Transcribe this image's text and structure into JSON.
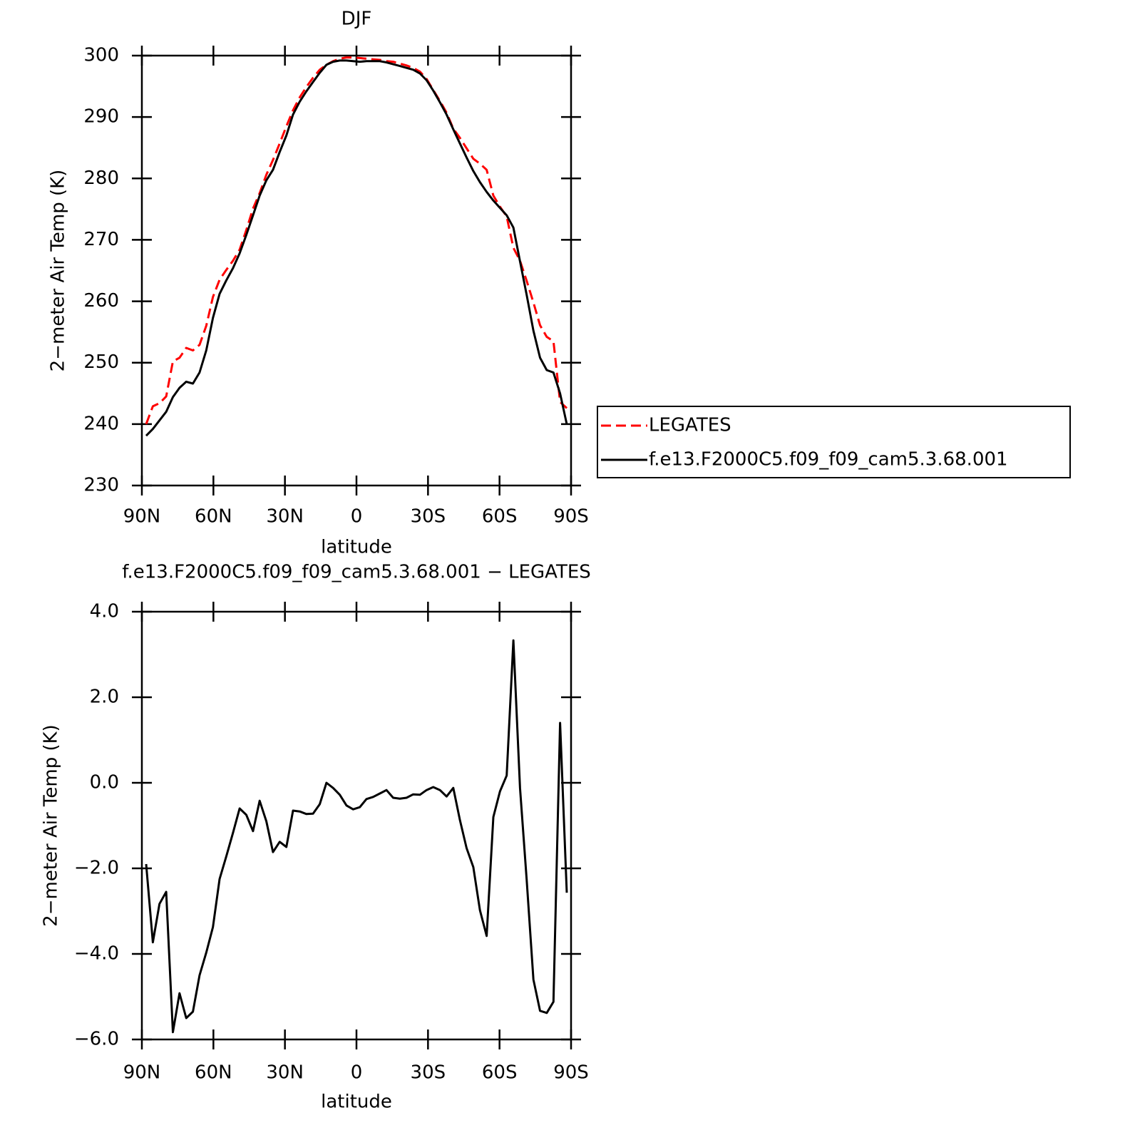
{
  "chart_data": [
    {
      "type": "line",
      "title": "DJF",
      "xlabel": "latitude",
      "ylabel": "2−meter Air Temp (K)",
      "x": [
        88.2,
        85.4,
        82.6,
        79.8,
        77,
        74.2,
        71.4,
        68.6,
        65.8,
        63,
        60.2,
        57.4,
        54.6,
        51.8,
        49,
        46.2,
        43.4,
        40.6,
        37.8,
        35,
        32.2,
        29.4,
        26.6,
        23.8,
        21,
        18.2,
        15.4,
        12.6,
        9.8,
        7,
        4.2,
        1.4,
        -1.4,
        -4.2,
        -7,
        -9.8,
        -12.6,
        -15.4,
        -18.2,
        -21,
        -23.8,
        -26.6,
        -29.4,
        -32.2,
        -35,
        -37.8,
        -40.6,
        -43.4,
        -46.2,
        -49,
        -51.8,
        -54.6,
        -57.4,
        -60.2,
        -63,
        -65.8,
        -68.6,
        -71.4,
        -74.2,
        -77,
        -79.8,
        -82.6,
        -85.4,
        -88.2
      ],
      "series": [
        {
          "name": "LEGATES",
          "color": "#ff0000",
          "line_style": "dashed",
          "values": [
            240.0,
            242.9,
            243.4,
            244.5,
            250.2,
            250.8,
            252.4,
            252.0,
            252.9,
            256.0,
            260.7,
            263.5,
            265.1,
            266.6,
            268.4,
            271.6,
            275.1,
            277.6,
            280.6,
            283.0,
            285.7,
            288.5,
            291.1,
            293.2,
            294.9,
            296.4,
            297.7,
            298.5,
            299.1,
            299.5,
            299.7,
            299.7,
            299.6,
            299.5,
            299.4,
            299.3,
            299.1,
            299.0,
            298.7,
            298.4,
            298.0,
            297.4,
            296.2,
            294.4,
            292.6,
            290.7,
            288.1,
            286.6,
            284.9,
            283.2,
            282.4,
            281.4,
            277.2,
            275.4,
            273.8,
            268.7,
            266.6,
            263.3,
            259.8,
            256.1,
            254.2,
            253.5,
            243.6,
            242.6
          ]
        },
        {
          "name": "f.e13.F2000C5.f09_f09_cam5.3.68.001",
          "color": "#000000",
          "line_style": "solid",
          "values": [
            238.1,
            239.2,
            240.6,
            242.0,
            244.4,
            245.9,
            246.9,
            246.6,
            248.4,
            252.0,
            257.3,
            261.2,
            263.4,
            265.4,
            267.8,
            270.8,
            274.0,
            277.2,
            279.7,
            281.4,
            284.3,
            287.0,
            290.4,
            292.5,
            294.2,
            295.7,
            297.2,
            298.5,
            299.0,
            299.2,
            299.2,
            299.1,
            299.0,
            299.1,
            299.1,
            299.1,
            298.9,
            298.6,
            298.3,
            298.0,
            297.7,
            297.1,
            296.0,
            294.3,
            292.4,
            290.4,
            288.0,
            285.7,
            283.4,
            281.2,
            279.4,
            277.8,
            276.4,
            275.2,
            274.0,
            272.0,
            266.5,
            261.0,
            255.2,
            250.8,
            248.8,
            248.4,
            245.0,
            240.0
          ]
        }
      ],
      "xlim": [
        90,
        -90
      ],
      "xticks": [
        {
          "value": 90,
          "label": "90N"
        },
        {
          "value": 60,
          "label": "60N"
        },
        {
          "value": 30,
          "label": "30N"
        },
        0,
        {
          "value": -30,
          "label": "30S"
        },
        {
          "value": -60,
          "label": "60S"
        },
        {
          "value": -90,
          "label": "90S"
        }
      ],
      "ylim": [
        230,
        300
      ],
      "yticks": [
        230,
        240,
        250,
        260,
        270,
        280,
        290,
        300
      ],
      "legend": "right"
    },
    {
      "type": "line",
      "title": "f.e13.F2000C5.f09_f09_cam5.3.68.001 − LEGATES",
      "xlabel": "latitude",
      "ylabel": "2−meter Air Temp (K)",
      "x": [
        88.2,
        85.4,
        82.6,
        79.8,
        77,
        74.2,
        71.4,
        68.6,
        65.8,
        63,
        60.2,
        57.4,
        54.6,
        51.8,
        49,
        46.2,
        43.4,
        40.6,
        37.8,
        35,
        32.2,
        29.4,
        26.6,
        23.8,
        21,
        18.2,
        15.4,
        12.6,
        9.8,
        7,
        4.2,
        1.4,
        -1.4,
        -4.2,
        -7,
        -9.8,
        -12.6,
        -15.4,
        -18.2,
        -21,
        -23.8,
        -26.6,
        -29.4,
        -32.2,
        -35,
        -37.8,
        -40.6,
        -43.4,
        -46.2,
        -49,
        -51.8,
        -54.6,
        -57.4,
        -60.2,
        -63,
        -65.8,
        -68.6,
        -71.4,
        -74.2,
        -77,
        -79.8,
        -82.6,
        -85.4,
        -88.2
      ],
      "series": [
        {
          "color": "#000000",
          "line_style": "solid",
          "values": [
            -1.9,
            -3.73,
            -2.83,
            -2.55,
            -5.83,
            -4.92,
            -5.5,
            -5.35,
            -4.5,
            -3.97,
            -3.37,
            -2.25,
            -1.72,
            -1.17,
            -0.6,
            -0.75,
            -1.13,
            -0.42,
            -0.9,
            -1.62,
            -1.38,
            -1.5,
            -0.65,
            -0.67,
            -0.73,
            -0.72,
            -0.5,
            0.0,
            -0.12,
            -0.28,
            -0.53,
            -0.62,
            -0.57,
            -0.38,
            -0.33,
            -0.25,
            -0.17,
            -0.35,
            -0.37,
            -0.35,
            -0.27,
            -0.28,
            -0.17,
            -0.1,
            -0.17,
            -0.32,
            -0.12,
            -0.87,
            -1.53,
            -1.97,
            -2.98,
            -3.58,
            -0.8,
            -0.2,
            0.17,
            3.33,
            -0.12,
            -2.28,
            -4.6,
            -5.33,
            -5.38,
            -5.12,
            1.4,
            -2.57
          ]
        }
      ],
      "xlim": [
        90,
        -90
      ],
      "xticks": [
        {
          "value": 90,
          "label": "90N"
        },
        {
          "value": 60,
          "label": "60N"
        },
        {
          "value": 30,
          "label": "30N"
        },
        0,
        {
          "value": -30,
          "label": "30S"
        },
        {
          "value": -60,
          "label": "60S"
        },
        {
          "value": -90,
          "label": "90S"
        }
      ],
      "ylim": [
        -6,
        4
      ],
      "yticks": [
        {
          "value": -6,
          "label": "−6.0"
        },
        {
          "value": -4,
          "label": "−4.0"
        },
        {
          "value": -2,
          "label": "−2.0"
        },
        {
          "value": 0,
          "label": "0.0"
        },
        {
          "value": 2,
          "label": "2.0"
        },
        {
          "value": 4,
          "label": "4.0"
        }
      ]
    }
  ]
}
